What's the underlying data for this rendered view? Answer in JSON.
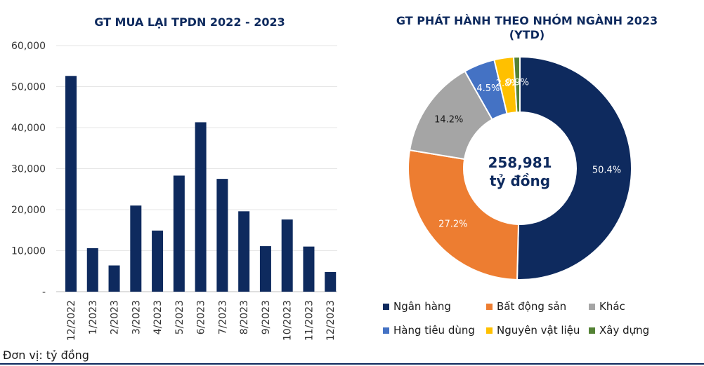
{
  "chart_data": [
    {
      "type": "bar",
      "title": "GT MUA LẠI TPDN 2022 - 2023",
      "categories": [
        "12/2022",
        "1/2023",
        "2/2023",
        "3/2023",
        "4/2023",
        "5/2023",
        "6/2023",
        "7/2023",
        "8/2023",
        "9/2023",
        "10/2023",
        "11/2023",
        "12/2023"
      ],
      "values": [
        52600,
        10600,
        6400,
        21000,
        14900,
        28300,
        41300,
        27500,
        19600,
        11100,
        17600,
        11000,
        4800
      ],
      "ylim": [
        0,
        60000
      ],
      "yticks": [
        "-",
        "10,000",
        "20,000",
        "30,000",
        "40,000",
        "50,000",
        "60,000"
      ],
      "color": "#0e2a5e",
      "grid": true
    },
    {
      "type": "pie",
      "title": "GT PHÁT HÀNH THEO NHÓM NGÀNH 2023 (YTD)",
      "center_text": [
        "258,981",
        "tỷ đồng"
      ],
      "slices": [
        {
          "name": "Ngân hàng",
          "value": 50.4,
          "label": "50.4%",
          "color": "#0e2a5e",
          "label_color": "#ffffff"
        },
        {
          "name": "Bất động sản",
          "value": 27.2,
          "label": "27.2%",
          "color": "#ed7d31",
          "label_color": "#ffffff"
        },
        {
          "name": "Khác",
          "value": 14.2,
          "label": "14.2%",
          "color": "#a5a5a5",
          "label_color": "#1a1a1a"
        },
        {
          "name": "Hàng tiêu dùng",
          "value": 4.5,
          "label": "4.5%",
          "color": "#4472c4",
          "label_color": "#ffffff"
        },
        {
          "name": "Nguyên vật liệu",
          "value": 2.8,
          "label": "2.8%",
          "color": "#ffc000",
          "label_color": "#ffffff"
        },
        {
          "name": "Xây dựng",
          "value": 0.9,
          "label": "0.9%",
          "color": "#548235",
          "label_color": "#ffffff"
        }
      ],
      "legend_position": "bottom"
    }
  ],
  "unit_note": "Đơn vị: tỷ đồng"
}
